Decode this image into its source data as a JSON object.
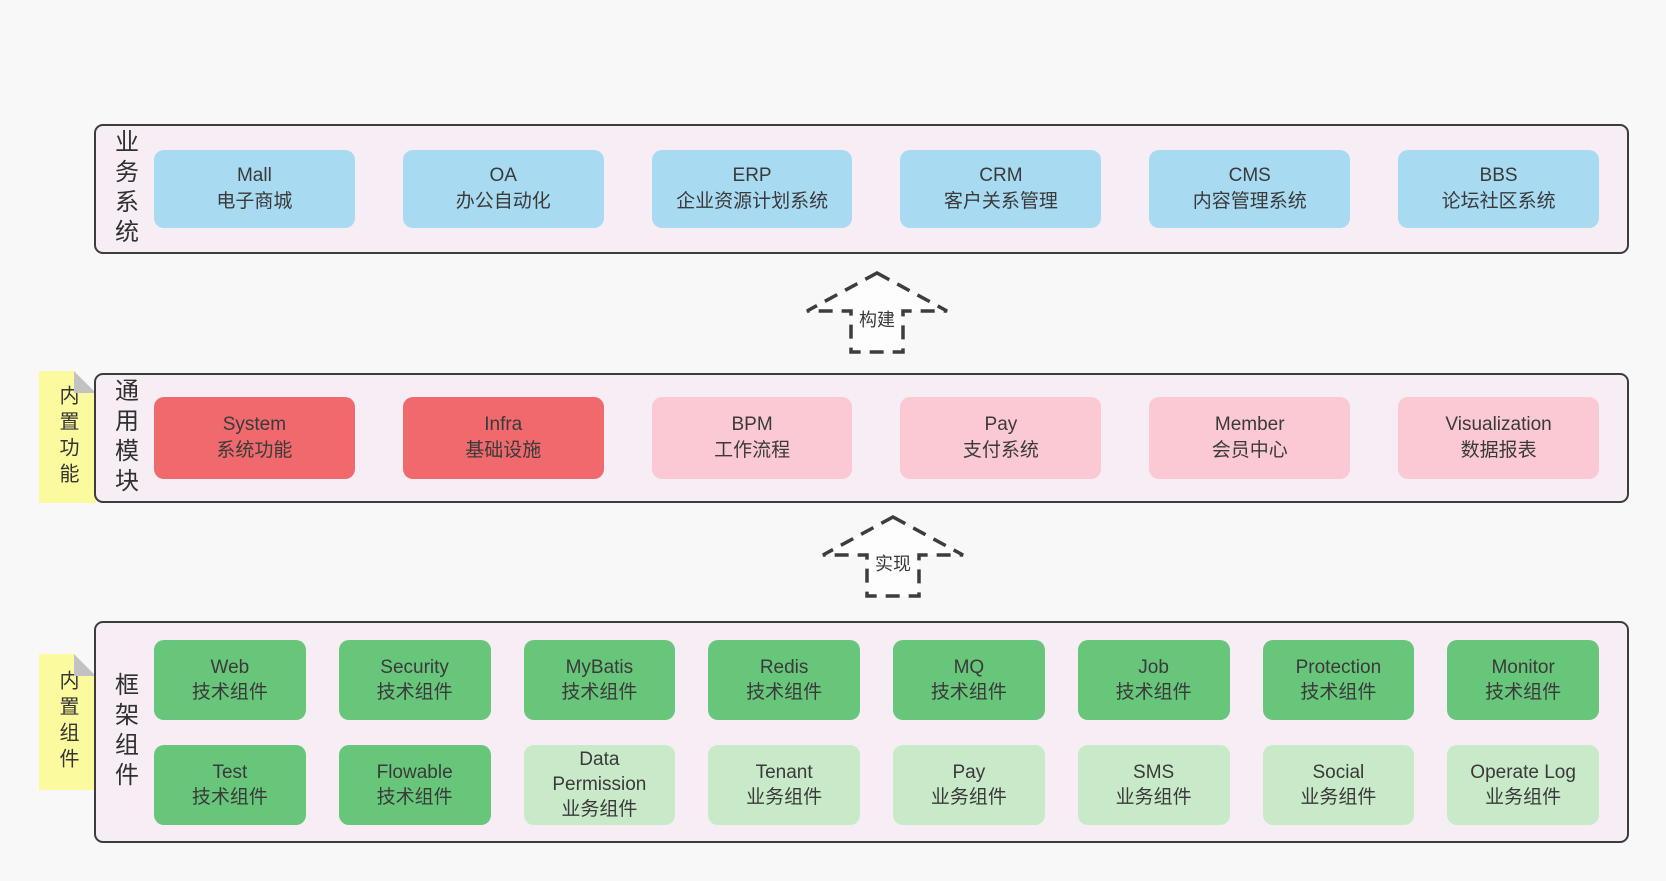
{
  "colors": {
    "page": "#f8f8f8",
    "panel": "#f7edf5",
    "border": "#3d3d3d",
    "blue": "#a8daf2",
    "red": "#f0696d",
    "pink": "#fac9d3",
    "green": "#68c67b",
    "lightgreen": "#c8eac9",
    "yellow": "#fcfa9f",
    "fold": "#c2c2c2",
    "text": "#3a3a3a"
  },
  "layers": [
    {
      "id": "business-systems",
      "label": "业务系统",
      "boxes": [
        {
          "name": "Mall",
          "subtitle": "电子商城",
          "variant": "blue"
        },
        {
          "name": "OA",
          "subtitle": "办公自动化",
          "variant": "blue"
        },
        {
          "name": "ERP",
          "subtitle": "企业资源计划系统",
          "variant": "blue"
        },
        {
          "name": "CRM",
          "subtitle": "客户关系管理",
          "variant": "blue"
        },
        {
          "name": "CMS",
          "subtitle": "内容管理系统",
          "variant": "blue"
        },
        {
          "name": "BBS",
          "subtitle": "论坛社区系统",
          "variant": "blue"
        }
      ]
    },
    {
      "id": "common-modules",
      "label": "通用模块",
      "note": "内置功能",
      "boxes": [
        {
          "name": "System",
          "subtitle": "系统功能",
          "variant": "red"
        },
        {
          "name": "Infra",
          "subtitle": "基础设施",
          "variant": "red"
        },
        {
          "name": "BPM",
          "subtitle": "工作流程",
          "variant": "pink"
        },
        {
          "name": "Pay",
          "subtitle": "支付系统",
          "variant": "pink"
        },
        {
          "name": "Member",
          "subtitle": "会员中心",
          "variant": "pink"
        },
        {
          "name": "Visualization",
          "subtitle": "数据报表",
          "variant": "pink"
        }
      ]
    },
    {
      "id": "framework-components",
      "label": "框架组件",
      "note": "内置组件",
      "rows": [
        [
          {
            "name": "Web",
            "subtitle": "技术组件",
            "variant": "green"
          },
          {
            "name": "Security",
            "subtitle": "技术组件",
            "variant": "green"
          },
          {
            "name": "MyBatis",
            "subtitle": "技术组件",
            "variant": "green"
          },
          {
            "name": "Redis",
            "subtitle": "技术组件",
            "variant": "green"
          },
          {
            "name": "MQ",
            "subtitle": "技术组件",
            "variant": "green"
          },
          {
            "name": "Job",
            "subtitle": "技术组件",
            "variant": "green"
          },
          {
            "name": "Protection",
            "subtitle": "技术组件",
            "variant": "green"
          },
          {
            "name": "Monitor",
            "subtitle": "技术组件",
            "variant": "green"
          }
        ],
        [
          {
            "name": "Test",
            "subtitle": "技术组件",
            "variant": "green"
          },
          {
            "name": "Flowable",
            "subtitle": "技术组件",
            "variant": "green"
          },
          {
            "name": "Data Permission",
            "subtitle": "业务组件",
            "variant": "lightgreen"
          },
          {
            "name": "Tenant",
            "subtitle": "业务组件",
            "variant": "lightgreen"
          },
          {
            "name": "Pay",
            "subtitle": "业务组件",
            "variant": "lightgreen"
          },
          {
            "name": "SMS",
            "subtitle": "业务组件",
            "variant": "lightgreen"
          },
          {
            "name": "Social",
            "subtitle": "业务组件",
            "variant": "lightgreen"
          },
          {
            "name": "Operate Log",
            "subtitle": "业务组件",
            "variant": "lightgreen"
          }
        ]
      ]
    }
  ],
  "arrows": [
    {
      "label": "构建"
    },
    {
      "label": "实现"
    }
  ]
}
